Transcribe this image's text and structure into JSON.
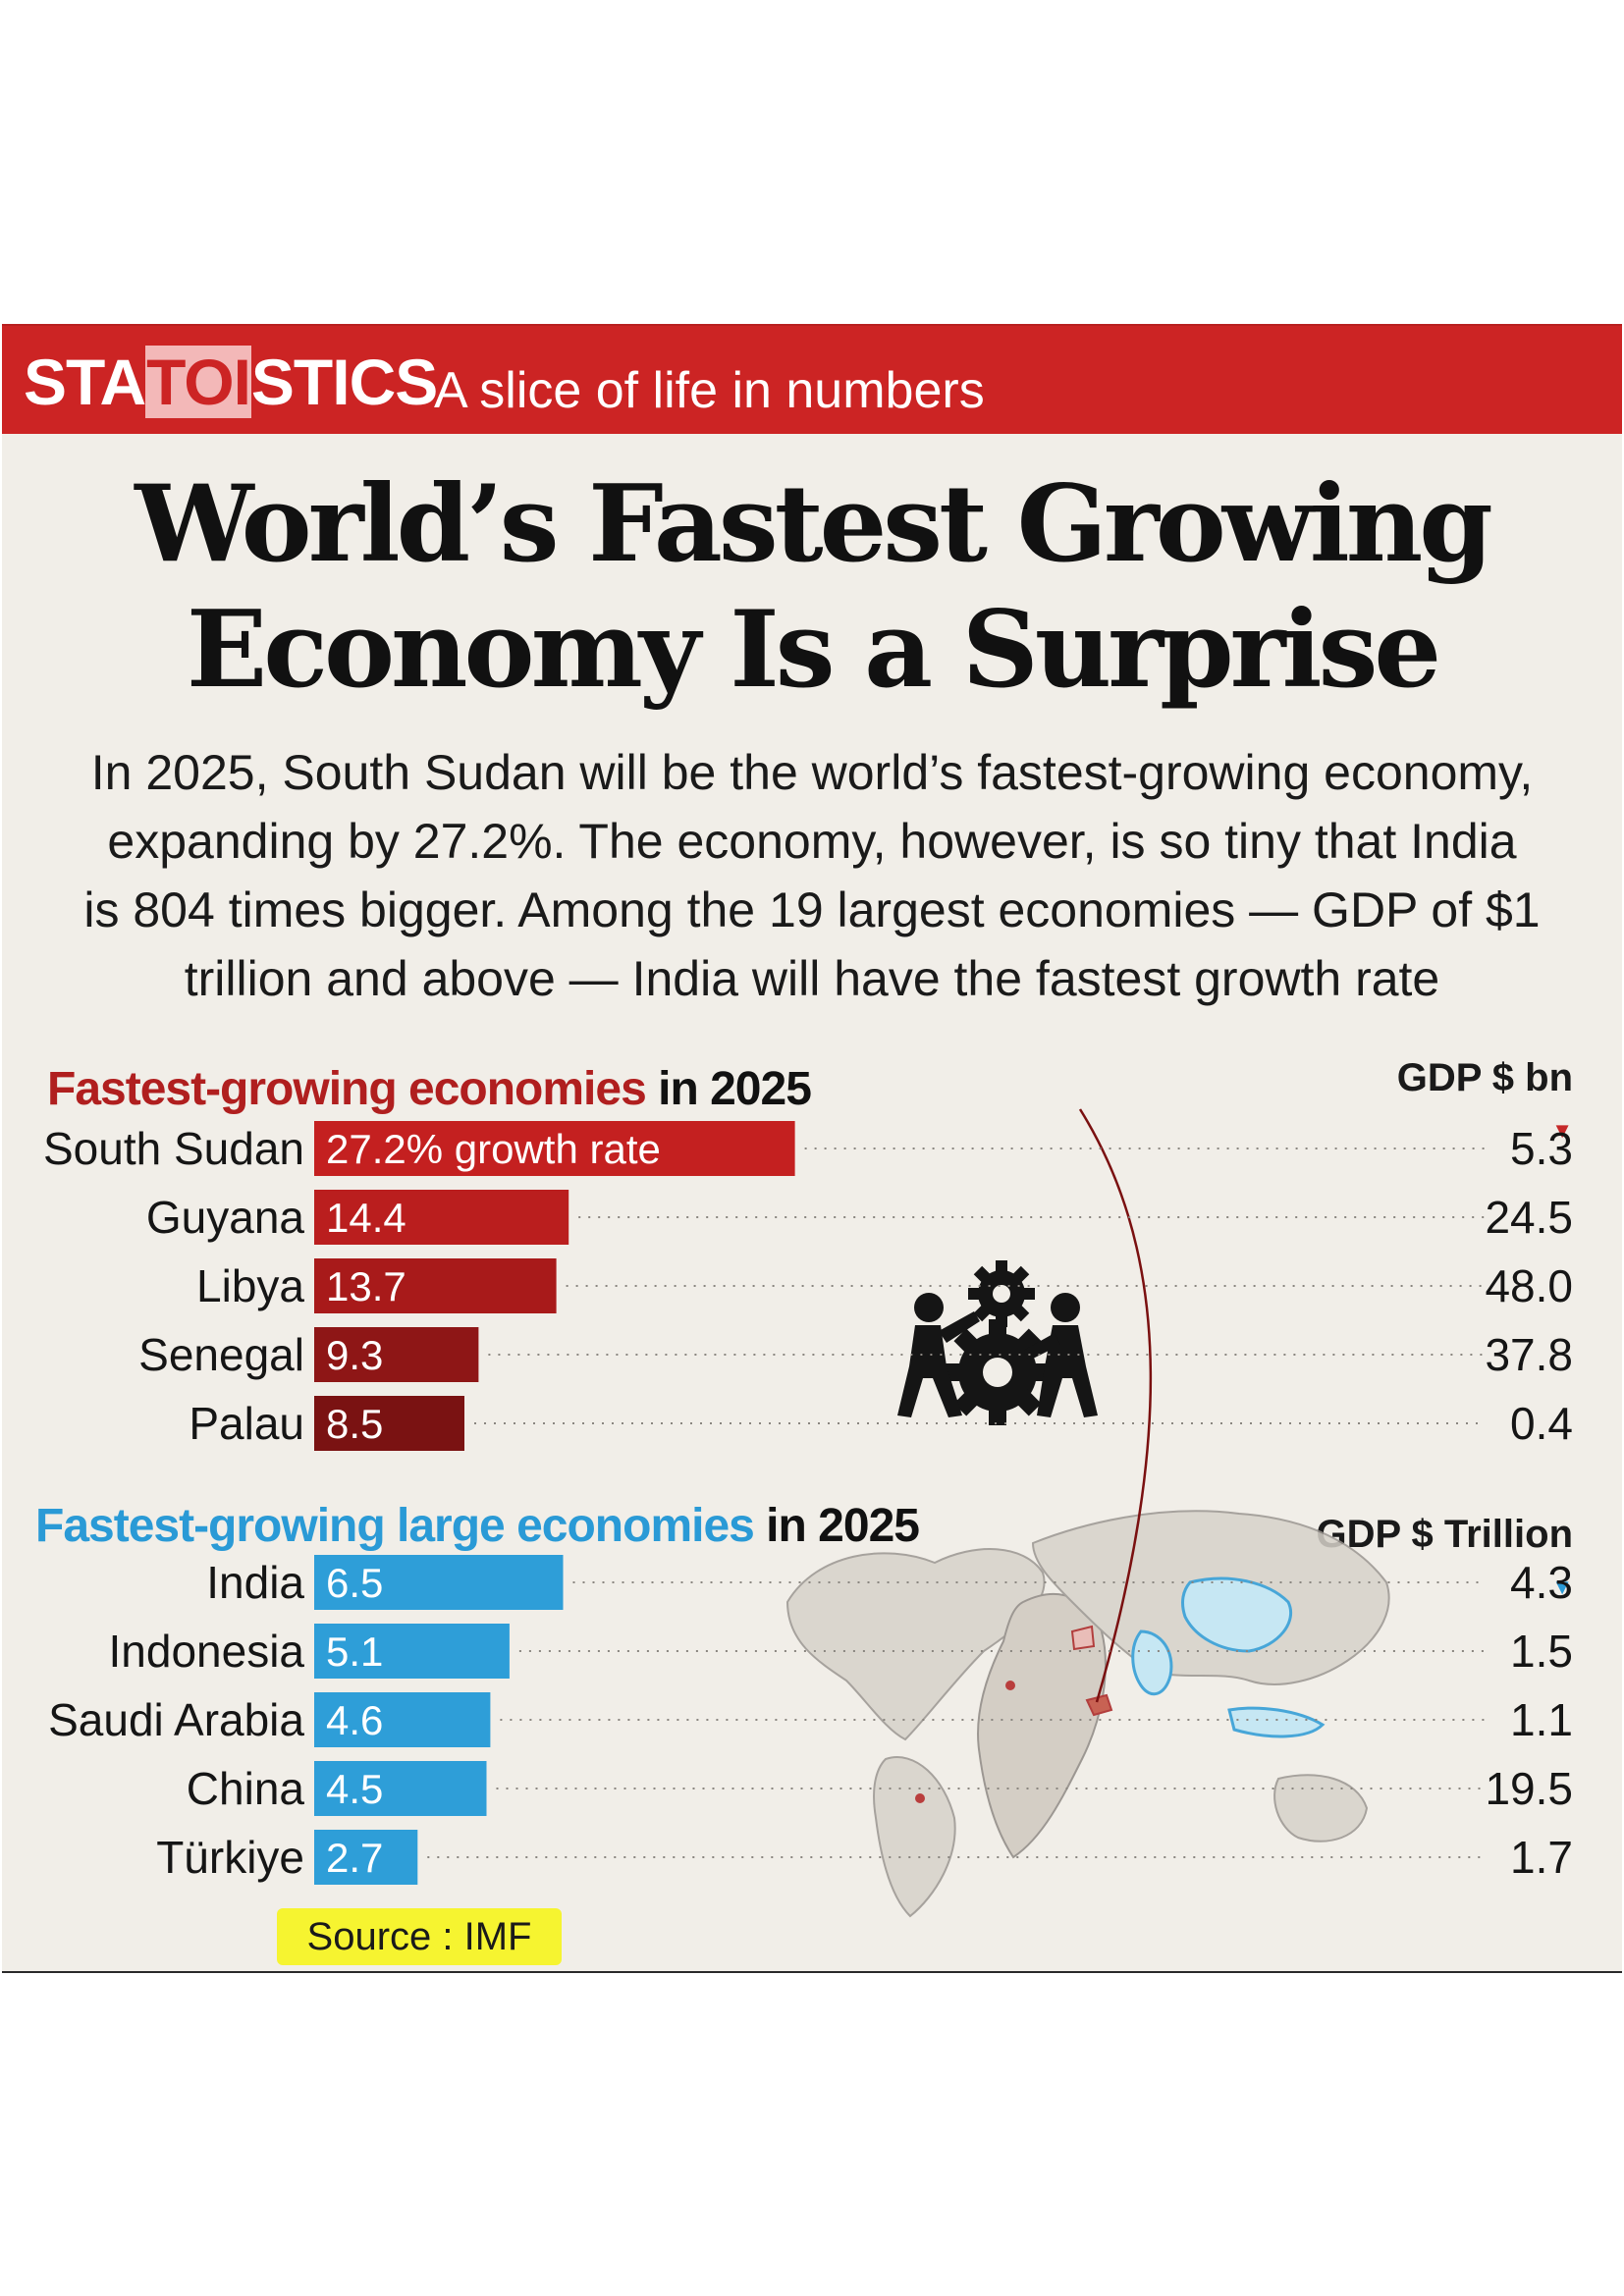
{
  "header": {
    "brand_pre": "STA",
    "brand_mid": "TOI",
    "brand_post": "STICS",
    "tagline": "A slice of life in numbers"
  },
  "headline": {
    "line1": "World’s Fastest Growing",
    "line2": "Economy Is a Surprise"
  },
  "intro": {
    "line1": "In 2025, South Sudan will be the world’s fastest-growing economy,",
    "line2": "expanding by 27.2%. The economy, however, is so tiny that India",
    "line3": "is 804 times bigger. Among the 19 largest economies — GDP of $1",
    "line4": "trillion and above — India will have the fastest growth rate"
  },
  "source": "Source : IMF",
  "chart_data": [
    {
      "type": "bar",
      "orientation": "horizontal",
      "title_highlight": "Fastest-growing economies",
      "title_rest": " in 2025",
      "value_column_label": "GDP $ bn",
      "categories": [
        "South Sudan",
        "Guyana",
        "Libya",
        "Senegal",
        "Palau"
      ],
      "values": [
        27.2,
        14.4,
        13.7,
        9.3,
        8.5
      ],
      "value_labels": [
        "27.2% growth rate",
        "14.4",
        "13.7",
        "9.3",
        "8.5"
      ],
      "gdp": [
        "5.3",
        "24.5",
        "48.0",
        "37.8",
        "0.4"
      ],
      "colors": [
        "#c42020",
        "#ba1e1e",
        "#a81a1a",
        "#8e1616",
        "#7a1212"
      ]
    },
    {
      "type": "bar",
      "orientation": "horizontal",
      "title_highlight": "Fastest-growing large economies",
      "title_rest": " in 2025",
      "value_column_label": "GDP $ Trillion",
      "categories": [
        "India",
        "Indonesia",
        "Saudi Arabia",
        "China",
        "Türkiye"
      ],
      "values": [
        6.5,
        5.1,
        4.6,
        4.5,
        2.7
      ],
      "value_labels": [
        "6.5",
        "5.1",
        "4.6",
        "4.5",
        "2.7"
      ],
      "gdp": [
        "4.3",
        "1.5",
        "1.1",
        "19.5",
        "1.7"
      ],
      "colors": [
        "#2e9ed8",
        "#2e9ed8",
        "#2e9ed8",
        "#2e9ed8",
        "#2e9ed8"
      ]
    }
  ],
  "icons": [
    "gears-workers-icon",
    "world-map-icon"
  ]
}
